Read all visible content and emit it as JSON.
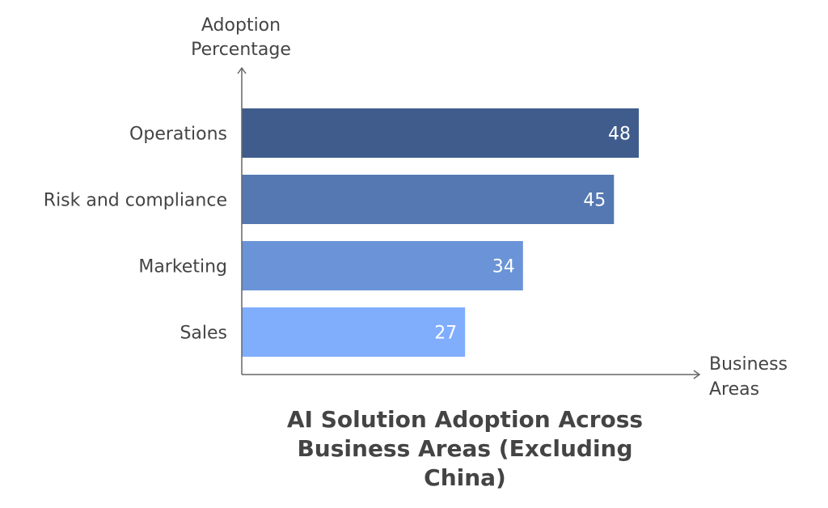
{
  "chart_data": {
    "type": "bar",
    "orientation": "horizontal",
    "title": "AI Solution Adoption Across Business Areas (Excluding China)",
    "title_lines": [
      "AI Solution Adoption Across",
      "Business Areas (Excluding",
      "China)"
    ],
    "ylabel": "Adoption Percentage",
    "ylabel_lines": [
      "Adoption",
      "Percentage"
    ],
    "xlabel": "Business Areas",
    "xlabel_lines": [
      "Business",
      "Areas"
    ],
    "categories": [
      "Operations",
      "Risk and compliance",
      "Marketing",
      "Sales"
    ],
    "values": [
      48,
      45,
      34,
      27
    ],
    "colors": [
      "#3f5c8c",
      "#5578b2",
      "#6a94d7",
      "#80aefd"
    ],
    "xlim": [
      0,
      48
    ],
    "grid": false
  }
}
